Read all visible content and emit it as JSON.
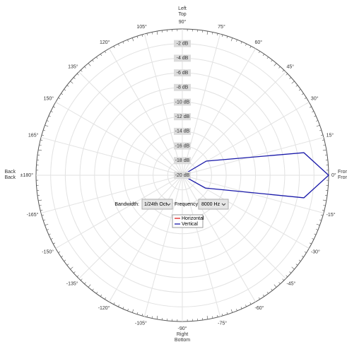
{
  "chart_data": {
    "type": "polar",
    "rlim": [
      -20,
      0
    ],
    "rticks": [
      {
        "value": -2,
        "label": "-2 dB"
      },
      {
        "value": -4,
        "label": "-4 dB"
      },
      {
        "value": -6,
        "label": "-6 dB"
      },
      {
        "value": -8,
        "label": "-8 dB"
      },
      {
        "value": -10,
        "label": "-10 dB"
      },
      {
        "value": -12,
        "label": "-12 dB"
      },
      {
        "value": -14,
        "label": "-14 dB"
      },
      {
        "value": -16,
        "label": "-16 dB"
      },
      {
        "value": -18,
        "label": "-18 dB"
      },
      {
        "value": -20,
        "label": "-20 dB"
      }
    ],
    "thetaticks": [
      {
        "value": 0,
        "label": "0°"
      },
      {
        "value": 15,
        "label": "15°"
      },
      {
        "value": 30,
        "label": "30°"
      },
      {
        "value": 45,
        "label": "45°"
      },
      {
        "value": 60,
        "label": "60°"
      },
      {
        "value": 75,
        "label": "75°"
      },
      {
        "value": 90,
        "label": "90°"
      },
      {
        "value": 105,
        "label": "105°"
      },
      {
        "value": 120,
        "label": "120°"
      },
      {
        "value": 135,
        "label": "135°"
      },
      {
        "value": 150,
        "label": "150°"
      },
      {
        "value": 165,
        "label": "165°"
      },
      {
        "value": 180,
        "label": "±180°"
      },
      {
        "value": -165,
        "label": "-165°"
      },
      {
        "value": -150,
        "label": "-150°"
      },
      {
        "value": -135,
        "label": "-135°"
      },
      {
        "value": -120,
        "label": "-120°"
      },
      {
        "value": -105,
        "label": "-105°"
      },
      {
        "value": -90,
        "label": "-90°"
      },
      {
        "value": -75,
        "label": "-75°"
      },
      {
        "value": -60,
        "label": "-60°"
      },
      {
        "value": -45,
        "label": "-45°"
      },
      {
        "value": -30,
        "label": "-30°"
      },
      {
        "value": -15,
        "label": "-15°"
      }
    ],
    "grid": true,
    "direction_labels": {
      "top": {
        "horizontal": "Left",
        "vertical": "Top"
      },
      "bottom": {
        "horizontal": "Right",
        "vertical": "Bottom"
      },
      "left": {
        "horizontal": "Back",
        "vertical": "Back"
      },
      "right": {
        "horizontal": "Front",
        "vertical": "Front"
      }
    },
    "series": [
      {
        "name": "Horizontal",
        "color": "#e02020",
        "theta": [],
        "values": []
      },
      {
        "name": "Vertical",
        "color": "#1a1aaa",
        "theta": [
          0,
          30.5,
          10.5,
          0,
          -10.5,
          -29,
          0
        ],
        "values": [
          -20,
          -16.2,
          -3.1,
          0,
          -3.1,
          -16.4,
          -20
        ]
      }
    ]
  },
  "controls": {
    "bandwidth_label": "Bandwidth:",
    "bandwidth_value": "1/24th Oct",
    "frequency_label": "Frequency:",
    "frequency_value": "8000 Hz"
  }
}
